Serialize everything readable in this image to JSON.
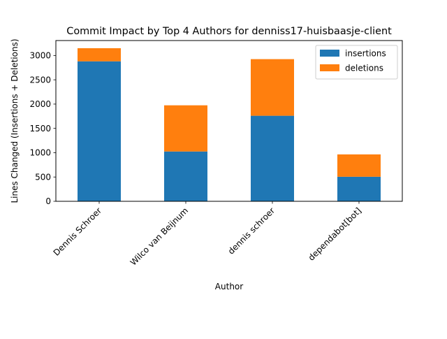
{
  "chart_data": {
    "type": "bar",
    "stacked": true,
    "title": "Commit Impact by Top 4 Authors for denniss17-huisbaasje-client",
    "xlabel": "Author",
    "ylabel": "Lines Changed (Insertions + Deletions)",
    "categories": [
      "Dennis Schroer",
      "Wilco van Beijnum",
      "dennis schroer",
      "dependabot[bot]"
    ],
    "series": [
      {
        "name": "insertions",
        "color": "#1f77b4",
        "values": [
          2880,
          1025,
          1760,
          505
        ]
      },
      {
        "name": "deletions",
        "color": "#ff7f0e",
        "values": [
          270,
          950,
          1165,
          460
        ]
      }
    ],
    "ylim": [
      0,
      3307.5
    ],
    "yticks": [
      0,
      500,
      1000,
      1500,
      2000,
      2500,
      3000
    ],
    "grid": false,
    "legend_position": "top-right"
  }
}
